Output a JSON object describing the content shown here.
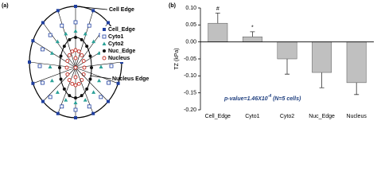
{
  "panel_labels": [
    "(a)",
    "(b)"
  ],
  "diagram": {
    "cell_edge_label": "Cell Edge",
    "nucleus_edge_label": "Nucleus Edge",
    "legend": [
      "Cell_Edge",
      "Cyto1",
      "Cyto2",
      "Nuc_Edge",
      "Nucleus"
    ]
  },
  "chart_data": {
    "type": "bar",
    "y_label": "TZ (kPa)",
    "categories": [
      "Cell_Edge",
      "Cyto1",
      "Cyto2",
      "Nuc_Edge",
      "Nucleus"
    ],
    "values": [
      0.055,
      0.015,
      -0.05,
      -0.09,
      -0.12
    ],
    "errors": [
      0.03,
      0.015,
      0.045,
      0.045,
      0.035
    ],
    "value_annotations": [
      "#",
      "*",
      null,
      null,
      null
    ],
    "color": "#c0c0c0",
    "ylim": [
      -0.2,
      0.1
    ],
    "yticks": [
      {
        "value": 0.1,
        "label": "0.10"
      },
      {
        "value": 0.05,
        "label": "0.05"
      },
      {
        "value": 0,
        "label": "0.00"
      },
      {
        "value": -0.05,
        "label": "-0.05"
      },
      {
        "value": -0.1,
        "label": "-0.10"
      },
      {
        "value": -0.15,
        "label": "-0.15"
      },
      {
        "value": -0.2,
        "label": "-0.20"
      }
    ],
    "note": {
      "main": "p-value=1.46X10",
      "exponent": "-4",
      "tail": " (N=5 cells)"
    }
  }
}
